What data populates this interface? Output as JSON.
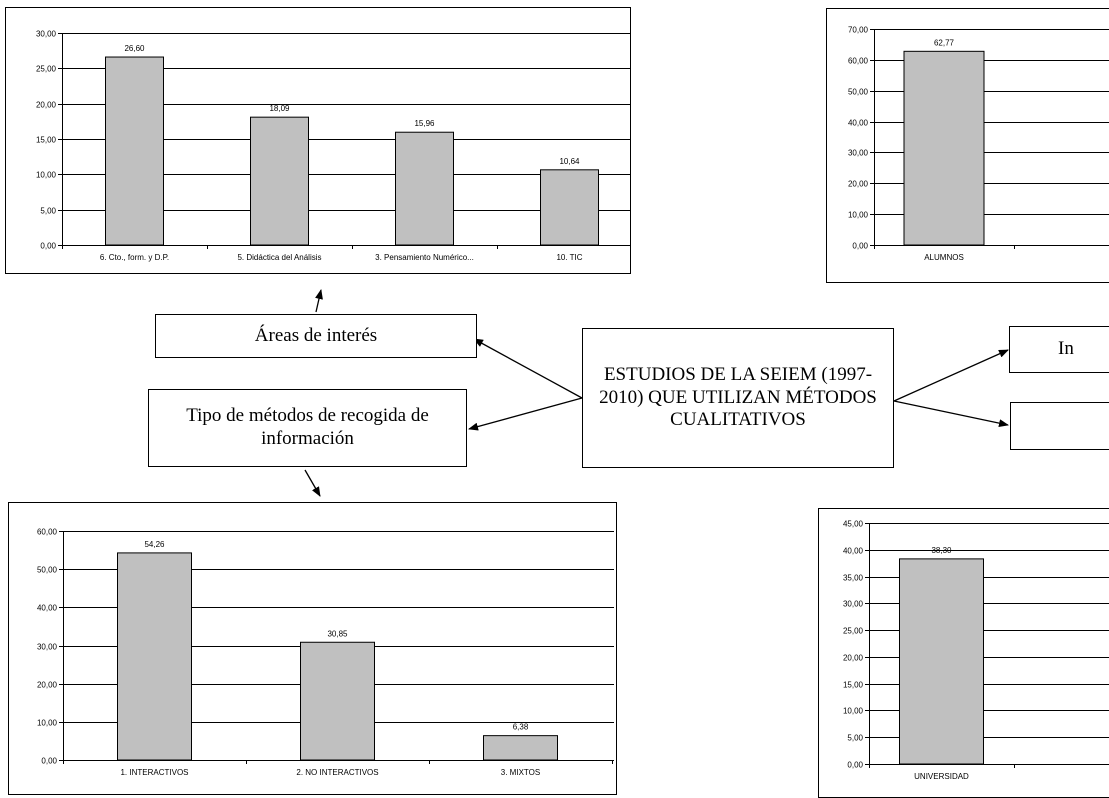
{
  "colors": {
    "bar_fill": "#c0c0c0",
    "bar_stroke": "#000000",
    "gridline": "#000000",
    "background": "#ffffff"
  },
  "boxes": {
    "areas": "Áreas de interés",
    "metodos": "Tipo de métodos de recogida de información",
    "center": "ESTUDIOS DE LA SEIEM (1997-2010) QUE UTILIZAN MÉTODOS CUALITATIVOS",
    "right_1": "In",
    "right_2": ""
  },
  "chart_data": [
    {
      "type": "bar",
      "title": "",
      "xlabel": "",
      "ylabel": "",
      "categories": [
        "6. Cto., form. y D.P.",
        "5. Didáctica del Análisis",
        "3. Pensamiento Numérico...",
        "10. TIC"
      ],
      "values": [
        26.6,
        18.09,
        15.96,
        10.64
      ],
      "value_labels": [
        "26,60",
        "18,09",
        "15,96",
        "10,64"
      ],
      "ylim": [
        0,
        30
      ],
      "yticks": [
        "0,00",
        "5,00",
        "10,00",
        "15,00",
        "20,00",
        "25,00",
        "30,00"
      ],
      "grid": true,
      "legend": "none"
    },
    {
      "type": "bar",
      "title": "",
      "xlabel": "",
      "ylabel": "",
      "categories": [
        "ALUMNOS"
      ],
      "values": [
        62.77
      ],
      "value_labels": [
        "62,77"
      ],
      "ylim": [
        0,
        70
      ],
      "yticks": [
        "0,00",
        "10,00",
        "20,00",
        "30,00",
        "40,00",
        "50,00",
        "60,00",
        "70,00"
      ],
      "grid": true,
      "legend": "none"
    },
    {
      "type": "bar",
      "title": "",
      "xlabel": "",
      "ylabel": "",
      "categories": [
        "1. INTERACTIVOS",
        "2. NO INTERACTIVOS",
        "3. MIXTOS"
      ],
      "values": [
        54.26,
        30.85,
        6.38
      ],
      "value_labels": [
        "54,26",
        "30,85",
        "6,38"
      ],
      "ylim": [
        0,
        60
      ],
      "yticks": [
        "0,00",
        "10,00",
        "20,00",
        "30,00",
        "40,00",
        "50,00",
        "60,00"
      ],
      "grid": true,
      "legend": "none"
    },
    {
      "type": "bar",
      "title": "",
      "xlabel": "",
      "ylabel": "",
      "categories": [
        "UNIVERSIDAD"
      ],
      "values": [
        38.3
      ],
      "value_labels": [
        "38,30"
      ],
      "ylim": [
        0,
        45
      ],
      "yticks": [
        "0,00",
        "5,00",
        "10,00",
        "15,00",
        "20,00",
        "25,00",
        "30,00",
        "35,00",
        "40,00",
        "45,00"
      ],
      "grid": true,
      "legend": "none"
    }
  ]
}
